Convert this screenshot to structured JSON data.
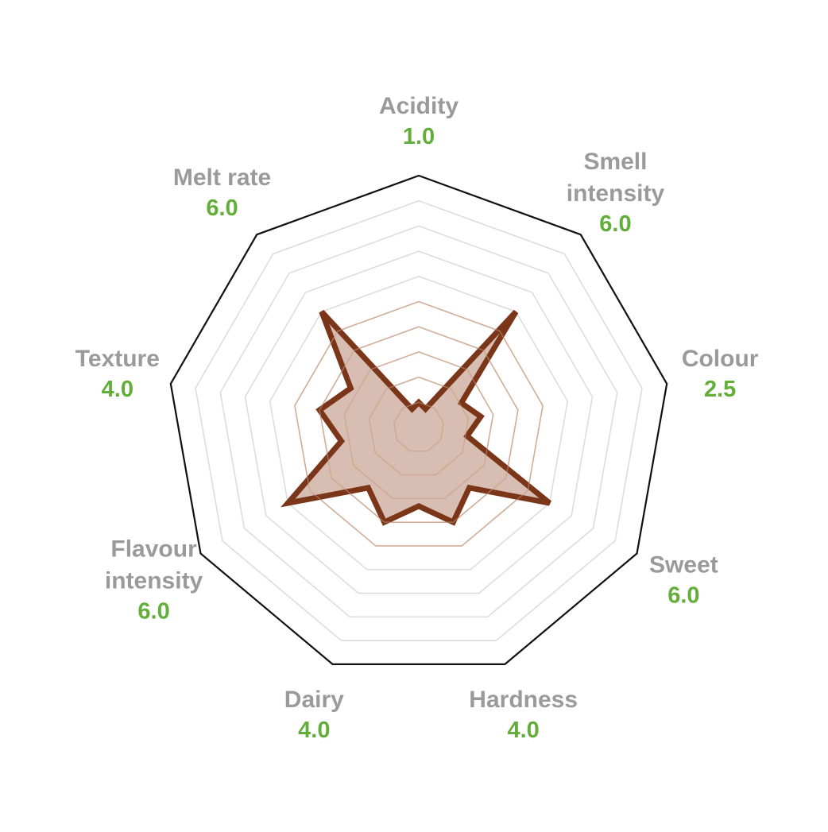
{
  "chart_data": {
    "type": "radar",
    "max": 10,
    "rings": 10,
    "axes": [
      {
        "lines": [
          "Acidity"
        ],
        "value_label": "1.0",
        "value": 1.0
      },
      {
        "lines": [
          "Smell",
          "intensity"
        ],
        "value_label": "6.0",
        "value": 6.0
      },
      {
        "lines": [
          "Colour"
        ],
        "value_label": "2.5",
        "value": 2.5
      },
      {
        "lines": [
          "Sweet"
        ],
        "value_label": "6.0",
        "value": 6.0
      },
      {
        "lines": [
          "Hardness"
        ],
        "value_label": "4.0",
        "value": 4.0
      },
      {
        "lines": [
          "Dairy"
        ],
        "value_label": "4.0",
        "value": 4.0
      },
      {
        "lines": [
          "Flavour",
          "intensity"
        ],
        "value_label": "6.0",
        "value": 6.0
      },
      {
        "lines": [
          "Texture"
        ],
        "value_label": "4.0",
        "value": 4.0
      },
      {
        "lines": [
          "Melt rate"
        ],
        "value_label": "6.0",
        "value": 6.0
      }
    ],
    "colors": {
      "outline": "#111111",
      "ring": "#dddddd",
      "inner_ring": "#d9bca9",
      "series_stroke": "#7b3518",
      "series_fill": "#d1b2a4",
      "axis_label": "#9a9a9a",
      "value_label": "#63ad3a"
    }
  }
}
